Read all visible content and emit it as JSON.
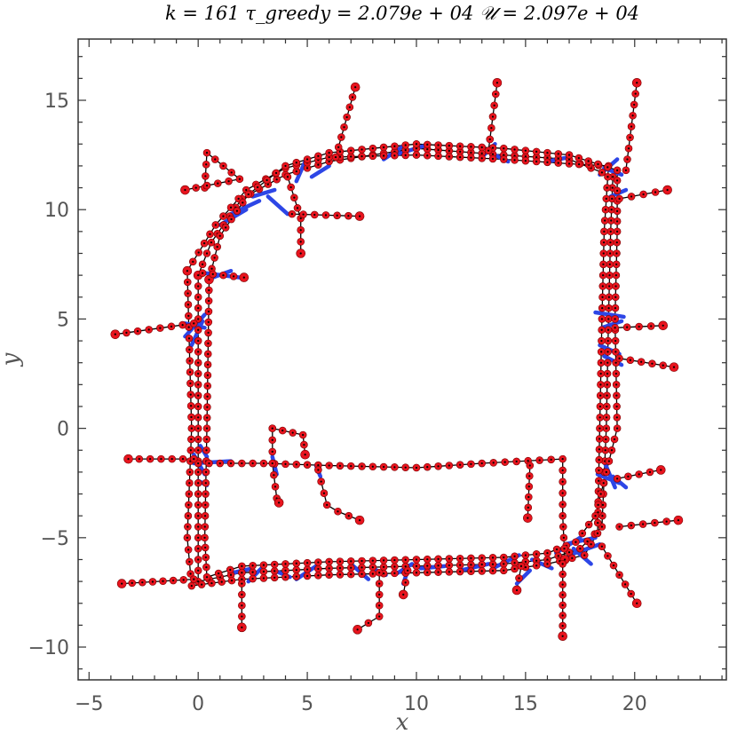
{
  "chart_data": {
    "type": "scatter",
    "title": "k = 161    τ_greedy = 2.079e + 04    𝒰 = 2.097e + 04",
    "xlabel": "x",
    "ylabel": "y",
    "xlim": [
      -5.5,
      24.2
    ],
    "ylim": [
      -11.5,
      17.8
    ],
    "xticks": [
      -5,
      0,
      5,
      10,
      15,
      20
    ],
    "yticks": [
      -10,
      -5,
      0,
      5,
      10,
      15
    ],
    "xtick_labels": [
      "−5",
      "0",
      "5",
      "10",
      "15",
      "20"
    ],
    "ytick_labels": [
      "−10",
      "−5",
      "0",
      "5",
      "10",
      "15"
    ],
    "grid": false,
    "colors": {
      "points": "#e8141e",
      "path": "#000000",
      "highlight": "#2d46e6",
      "axes": "#333333"
    },
    "series": [
      {
        "kind": "black-path",
        "polylines": [
          [
            [
              0,
              7
            ],
            [
              0,
              0
            ],
            [
              0,
              -5
            ],
            [
              0,
              -7
            ],
            [
              2,
              -6.6
            ],
            [
              6,
              -6.4
            ],
            [
              10,
              -6.3
            ],
            [
              14,
              -6.2
            ],
            [
              16,
              -6
            ],
            [
              17.5,
              -5.5
            ],
            [
              18.5,
              -4.5
            ],
            [
              18.7,
              0
            ],
            [
              18.8,
              5
            ],
            [
              18.9,
              9
            ],
            [
              19,
              11.5
            ],
            [
              17,
              12.3
            ],
            [
              14,
              12.5
            ],
            [
              10,
              12.8
            ],
            [
              6,
              12.2
            ],
            [
              4,
              11.6
            ],
            [
              2,
              10.5
            ],
            [
              0.6,
              8.5
            ],
            [
              0,
              7
            ]
          ],
          [
            [
              -0.5,
              7.2
            ],
            [
              -0.3,
              0
            ],
            [
              -0.5,
              -5
            ],
            [
              -0.3,
              -7.2
            ],
            [
              2,
              -6.9
            ],
            [
              6,
              -6.7
            ],
            [
              10,
              -6.6
            ],
            [
              14,
              -6.5
            ],
            [
              16,
              -6.2
            ],
            [
              17.7,
              -5.8
            ],
            [
              18.3,
              -4.8
            ],
            [
              18.4,
              0
            ],
            [
              18.5,
              5
            ],
            [
              18.6,
              9
            ],
            [
              18.8,
              12
            ],
            [
              17,
              12.1
            ],
            [
              14,
              12.3
            ],
            [
              10,
              12.5
            ],
            [
              6,
              12.4
            ],
            [
              4,
              11.9
            ],
            [
              2.2,
              10.9
            ],
            [
              0.8,
              9.3
            ],
            [
              -0.5,
              7.2
            ]
          ],
          [
            [
              0.5,
              6.8
            ],
            [
              0.4,
              0
            ],
            [
              0.3,
              -5
            ],
            [
              0.4,
              -6.8
            ],
            [
              2,
              -6.3
            ],
            [
              6,
              -6.1
            ],
            [
              10,
              -6
            ],
            [
              14,
              -5.9
            ],
            [
              16,
              -5.7
            ],
            [
              17.3,
              -5.2
            ],
            [
              18.2,
              -4
            ],
            [
              19.2,
              0
            ],
            [
              19.1,
              5
            ],
            [
              19.2,
              9
            ],
            [
              19.2,
              11.8
            ],
            [
              17,
              12.5
            ],
            [
              14,
              12.8
            ],
            [
              10,
              13
            ],
            [
              6,
              12.6
            ],
            [
              4,
              12
            ],
            [
              2.3,
              10.7
            ],
            [
              1,
              8.8
            ],
            [
              0.5,
              6.8
            ]
          ],
          [
            [
              0,
              -1.6
            ],
            [
              3,
              -1.6
            ],
            [
              6,
              -1.7
            ],
            [
              10,
              -1.8
            ],
            [
              13,
              -1.6
            ],
            [
              16.7,
              -1.4
            ],
            [
              16.7,
              -4
            ],
            [
              16.8,
              -6
            ]
          ],
          [
            [
              3.4,
              0
            ],
            [
              3.4,
              -1.6
            ],
            [
              3.6,
              -3.2
            ],
            [
              3.7,
              -3.4
            ]
          ],
          [
            [
              3.4,
              0
            ],
            [
              4.8,
              -0.3
            ],
            [
              4.9,
              -1.2
            ]
          ],
          [
            [
              5.5,
              -1.9
            ],
            [
              5.9,
              -3.5
            ],
            [
              6.4,
              -3.8
            ],
            [
              7.4,
              -4.2
            ]
          ],
          [
            [
              15.2,
              -1.7
            ],
            [
              15.1,
              -4.1
            ]
          ],
          [
            [
              -0.2,
              -1.4
            ],
            [
              -3.2,
              -1.4
            ]
          ],
          [
            [
              -0.2,
              -6.9
            ],
            [
              -3.5,
              -7.1
            ]
          ],
          [
            [
              -0.2,
              4.8
            ],
            [
              -3.8,
              4.3
            ]
          ],
          [
            [
              0.2,
              7.1
            ],
            [
              2.1,
              6.9
            ]
          ],
          [
            [
              0.3,
              11
            ],
            [
              0.4,
              12.6
            ],
            [
              1.9,
              11.4
            ],
            [
              -0.6,
              10.9
            ]
          ],
          [
            [
              4.1,
              11.5
            ],
            [
              4.7,
              9.6
            ],
            [
              4.7,
              8
            ]
          ],
          [
            [
              4.3,
              9.8
            ],
            [
              7.4,
              9.7
            ]
          ],
          [
            [
              6.3,
              12.4
            ],
            [
              7.2,
              15.6
            ]
          ],
          [
            [
              13.3,
              12.7
            ],
            [
              13.7,
              15.8
            ]
          ],
          [
            [
              19.6,
              11.8
            ],
            [
              20.1,
              15.8
            ]
          ],
          [
            [
              19.3,
              10.5
            ],
            [
              21.5,
              10.9
            ]
          ],
          [
            [
              19.1,
              4.6
            ],
            [
              21.3,
              4.7
            ]
          ],
          [
            [
              19.3,
              3.2
            ],
            [
              21.8,
              2.8
            ]
          ],
          [
            [
              19.2,
              -2.3
            ],
            [
              21.2,
              -1.9
            ]
          ],
          [
            [
              19.3,
              -4.5
            ],
            [
              22,
              -4.2
            ]
          ],
          [
            [
              18.5,
              -5.4
            ],
            [
              20.1,
              -8
            ]
          ],
          [
            [
              16.7,
              -6.2
            ],
            [
              16.7,
              -9.5
            ]
          ],
          [
            [
              14.8,
              -6.3
            ],
            [
              14.6,
              -7.4
            ]
          ],
          [
            [
              9.6,
              -6.5
            ],
            [
              9.4,
              -7.6
            ]
          ],
          [
            [
              8.3,
              -6.6
            ],
            [
              8.3,
              -8.6
            ],
            [
              7.3,
              -9.2
            ]
          ],
          [
            [
              2,
              -6.6
            ],
            [
              2,
              -9.1
            ]
          ]
        ]
      },
      {
        "kind": "blue-links",
        "segments": [
          [
            [
              0.1,
              -0.8
            ],
            [
              0.4,
              -1.3
            ]
          ],
          [
            [
              -0.2,
              -1.2
            ],
            [
              0.3,
              -2.1
            ]
          ],
          [
            [
              -0.2,
              -1.6
            ],
            [
              1.5,
              -1.5
            ]
          ],
          [
            [
              0,
              -2.4
            ],
            [
              0.4,
              -2.6
            ]
          ],
          [
            [
              -0.6,
              4.8
            ],
            [
              0.3,
              4.6
            ]
          ],
          [
            [
              -0.6,
              4.2
            ],
            [
              0.3,
              5.2
            ]
          ],
          [
            [
              -0.3,
              3.8
            ],
            [
              0.2,
              4.9
            ]
          ],
          [
            [
              0.4,
              6.8
            ],
            [
              1.5,
              7.2
            ]
          ],
          [
            [
              0.3,
              7.1
            ],
            [
              1.9,
              6.9
            ]
          ],
          [
            [
              1,
              9.3
            ],
            [
              2.2,
              10
            ]
          ],
          [
            [
              1.5,
              9.8
            ],
            [
              2.8,
              10.4
            ]
          ],
          [
            [
              2.5,
              10.6
            ],
            [
              3.5,
              10.9
            ]
          ],
          [
            [
              3.2,
              10.6
            ],
            [
              4.1,
              9.8
            ]
          ],
          [
            [
              4.5,
              11.3
            ],
            [
              4.9,
              12.2
            ]
          ],
          [
            [
              5.2,
              11.5
            ],
            [
              6,
              12
            ]
          ],
          [
            [
              8.5,
              12.3
            ],
            [
              9.4,
              12.9
            ]
          ],
          [
            [
              9,
              12.5
            ],
            [
              10.3,
              12.9
            ]
          ],
          [
            [
              13,
              12.4
            ],
            [
              13.6,
              13
            ]
          ],
          [
            [
              13.4,
              12.6
            ],
            [
              14.2,
              12.2
            ]
          ],
          [
            [
              16,
              12.2
            ],
            [
              17,
              12.4
            ]
          ],
          [
            [
              18.6,
              11.9
            ],
            [
              19.4,
              11.6
            ]
          ],
          [
            [
              18.4,
              11.6
            ],
            [
              19.2,
              12.3
            ]
          ],
          [
            [
              18.9,
              10.6
            ],
            [
              19.6,
              10.9
            ]
          ],
          [
            [
              18.2,
              5.3
            ],
            [
              19.5,
              5.1
            ]
          ],
          [
            [
              18.5,
              4.6
            ],
            [
              19.4,
              4.9
            ]
          ],
          [
            [
              18.4,
              3.8
            ],
            [
              19.3,
              3.4
            ]
          ],
          [
            [
              18.6,
              3.3
            ],
            [
              19.4,
              2.9
            ]
          ],
          [
            [
              18.3,
              -2.1
            ],
            [
              19.3,
              -2.5
            ]
          ],
          [
            [
              18.6,
              -1.5
            ],
            [
              19.1,
              -2.7
            ]
          ],
          [
            [
              19,
              -2.2
            ],
            [
              19.6,
              -2.7
            ]
          ],
          [
            [
              16.8,
              -5.3
            ],
            [
              18.2,
              -5
            ]
          ],
          [
            [
              17,
              -5.8
            ],
            [
              18.4,
              -5.3
            ]
          ],
          [
            [
              17.2,
              -5.5
            ],
            [
              18,
              -6.2
            ]
          ],
          [
            [
              16.4,
              -5.7
            ],
            [
              17.5,
              -5
            ]
          ],
          [
            [
              15.3,
              -6
            ],
            [
              16.2,
              -6.4
            ]
          ],
          [
            [
              13.5,
              -6.4
            ],
            [
              14.7,
              -5.8
            ]
          ],
          [
            [
              12,
              -6.5
            ],
            [
              13.3,
              -6.2
            ]
          ],
          [
            [
              10.2,
              -6.4
            ],
            [
              11.3,
              -6.3
            ]
          ],
          [
            [
              9,
              -6.7
            ],
            [
              9.8,
              -6.2
            ]
          ],
          [
            [
              8,
              -6.4
            ],
            [
              8.6,
              -6.7
            ]
          ],
          [
            [
              7,
              -6.2
            ],
            [
              7.8,
              -6.9
            ]
          ],
          [
            [
              4.5,
              -6.9
            ],
            [
              5.4,
              -6.3
            ]
          ],
          [
            [
              3.5,
              -6.5
            ],
            [
              4.2,
              -6.8
            ]
          ],
          [
            [
              2.3,
              -7
            ],
            [
              3,
              -6.3
            ]
          ],
          [
            [
              1.6,
              -6.6
            ],
            [
              2.5,
              -6.4
            ]
          ],
          [
            [
              9.4,
              -7.1
            ],
            [
              9.6,
              -6.5
            ]
          ],
          [
            [
              14.6,
              -7.1
            ],
            [
              15.2,
              -6.5
            ]
          ],
          [
            [
              3.6,
              -2.1
            ],
            [
              3.4,
              -1.3
            ]
          ],
          [
            [
              5.6,
              -2.2
            ],
            [
              5.4,
              -1.7
            ]
          ]
        ]
      }
    ],
    "point_count": 161
  }
}
